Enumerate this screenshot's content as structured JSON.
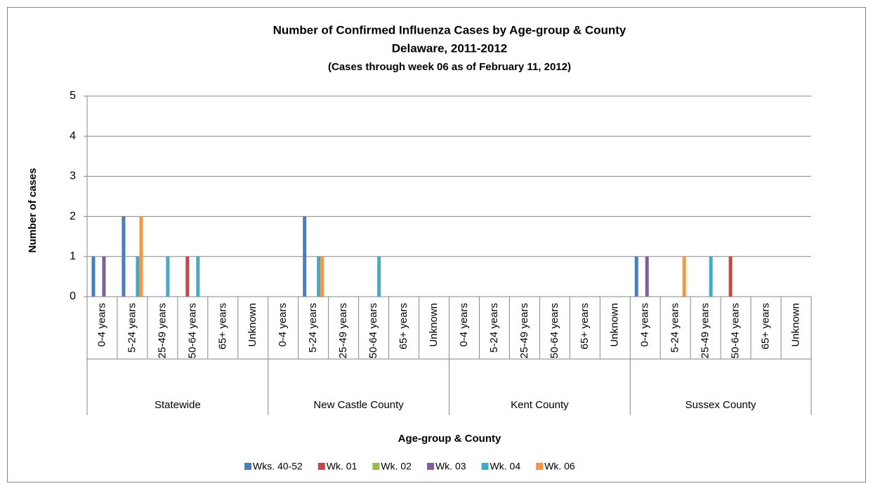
{
  "chart_data": {
    "type": "bar",
    "title": "Number of Confirmed Influenza Cases by Age-group & County",
    "subtitle": "Delaware, 2011-2012",
    "note": "(Cases through week 06 as of February 11, 2012)",
    "y_label": "Number of cases",
    "x_label": "Age-group & County",
    "groups": [
      "Statewide",
      "New Castle  County",
      "Kent County",
      "Sussex County"
    ],
    "categories": [
      "0-4 years",
      "5-24 years",
      "25-49 years",
      "50-64 years",
      "65+ years",
      "Unknown",
      "0-4 years",
      "5-24 years",
      "25-49 years",
      "50-64 years",
      "65+ years",
      "Unknown",
      "0-4 years",
      "5-24 years",
      "25-49 years",
      "50-64 years",
      "65+ years",
      "Unknown",
      "0-4 years",
      "5-24 years",
      "25-49 years",
      "50-64 years",
      "65+ years",
      "Unknown"
    ],
    "series": [
      {
        "name": "Wks. 40-52",
        "color": "#4a7ebb",
        "values": [
          1,
          2,
          0,
          0,
          0,
          0,
          0,
          2,
          0,
          0,
          0,
          0,
          0,
          0,
          0,
          0,
          0,
          0,
          1,
          0,
          0,
          0,
          0,
          0
        ]
      },
      {
        "name": "Wk. 01",
        "color": "#be4b48",
        "values": [
          0,
          0,
          0,
          1,
          0,
          0,
          0,
          0,
          0,
          0,
          0,
          0,
          0,
          0,
          0,
          0,
          0,
          0,
          0,
          0,
          0,
          1,
          0,
          0
        ]
      },
      {
        "name": "Wk. 02",
        "color": "#98b954",
        "values": [
          0,
          0,
          0,
          0,
          0,
          0,
          0,
          0,
          0,
          0,
          0,
          0,
          0,
          0,
          0,
          0,
          0,
          0,
          0,
          0,
          0,
          0,
          0,
          0
        ]
      },
      {
        "name": "Wk. 03",
        "color": "#7d60a0",
        "values": [
          1,
          0,
          0,
          0,
          0,
          0,
          0,
          0,
          0,
          0,
          0,
          0,
          0,
          0,
          0,
          0,
          0,
          0,
          1,
          0,
          0,
          0,
          0,
          0
        ]
      },
      {
        "name": "Wk. 04",
        "color": "#46aac5",
        "values": [
          0,
          1,
          1,
          1,
          0,
          0,
          0,
          1,
          0,
          1,
          0,
          0,
          0,
          0,
          0,
          0,
          0,
          0,
          0,
          0,
          1,
          0,
          0,
          0
        ]
      },
      {
        "name": "Wk. 06",
        "color": "#f79646",
        "values": [
          0,
          2,
          0,
          0,
          0,
          0,
          0,
          1,
          0,
          0,
          0,
          0,
          0,
          0,
          0,
          0,
          0,
          0,
          0,
          1,
          0,
          0,
          0,
          0
        ]
      }
    ],
    "ylim": [
      0,
      5
    ],
    "yticks": [
      0,
      1,
      2,
      3,
      4,
      5
    ],
    "grid": true,
    "legend": "bottom"
  }
}
